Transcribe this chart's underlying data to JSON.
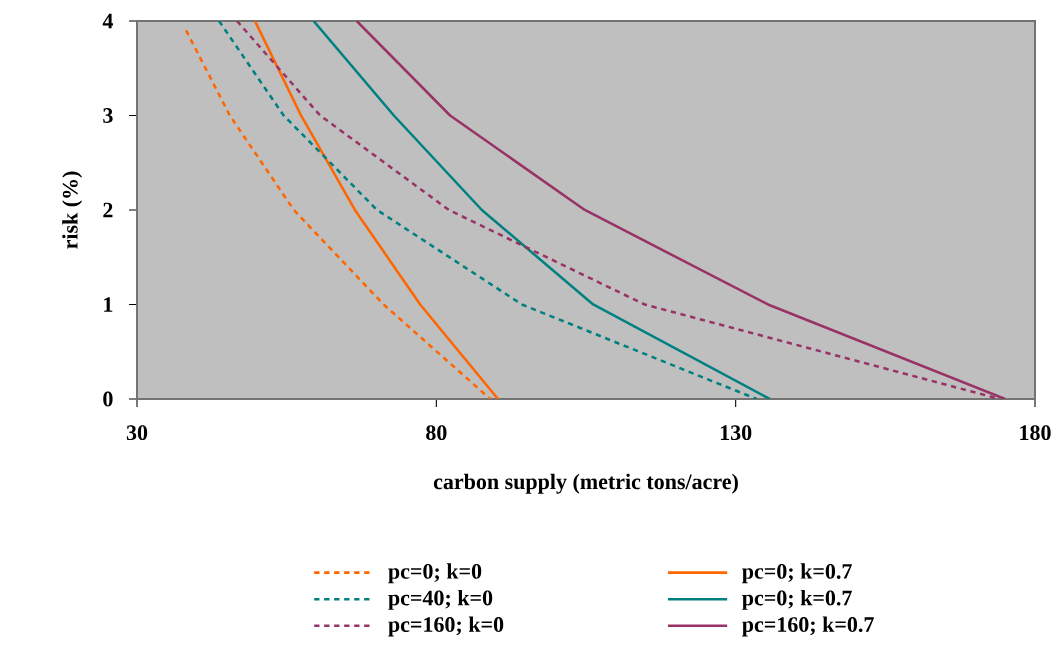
{
  "chart_data": {
    "type": "line",
    "xlabel": "carbon supply (metric tons/acre)",
    "ylabel": "risk (%)",
    "xlim": [
      30,
      180
    ],
    "xticks": [
      30,
      80,
      130,
      180
    ],
    "ylim": [
      0,
      4
    ],
    "yticks": [
      0,
      1,
      2,
      3,
      4
    ],
    "legend": "bottom",
    "series": [
      {
        "name": "pc=0; k=0",
        "color": "#ff6600",
        "line_style": "dashed",
        "x": [
          38.2,
          45.5,
          56.2,
          71.2,
          89.0
        ],
        "values": [
          3.9,
          3,
          2,
          1,
          0
        ]
      },
      {
        "name": "pc=0; k=0.7",
        "color": "#ff6600",
        "line_style": "solid",
        "x": [
          49.7,
          57.4,
          66.4,
          77.3,
          90.3
        ],
        "values": [
          4,
          3,
          2,
          1,
          0
        ]
      },
      {
        "name": "pc=40; k=0",
        "color": "#008080",
        "line_style": "dashed",
        "x": [
          43.7,
          54.5,
          70.1,
          94.3,
          133.5
        ],
        "values": [
          4,
          3,
          2,
          1,
          0
        ]
      },
      {
        "name": "pc=0; k=0.7",
        "color": "#008080",
        "line_style": "solid",
        "x": [
          59.5,
          72.9,
          87.6,
          106.2,
          135.7
        ],
        "values": [
          4,
          3,
          2,
          1,
          0
        ]
      },
      {
        "name": "pc=160; k=0",
        "color": "#993366",
        "line_style": "dashed",
        "x": [
          46.7,
          60.6,
          82.1,
          114.8,
          174.1
        ],
        "values": [
          4,
          3,
          2,
          1,
          0
        ]
      },
      {
        "name": "pc=160; k=0.7",
        "color": "#993366",
        "line_style": "solid",
        "x": [
          66.7,
          82.3,
          104.8,
          135.4,
          175.0
        ],
        "values": [
          4,
          3,
          2,
          1,
          0
        ]
      }
    ]
  }
}
